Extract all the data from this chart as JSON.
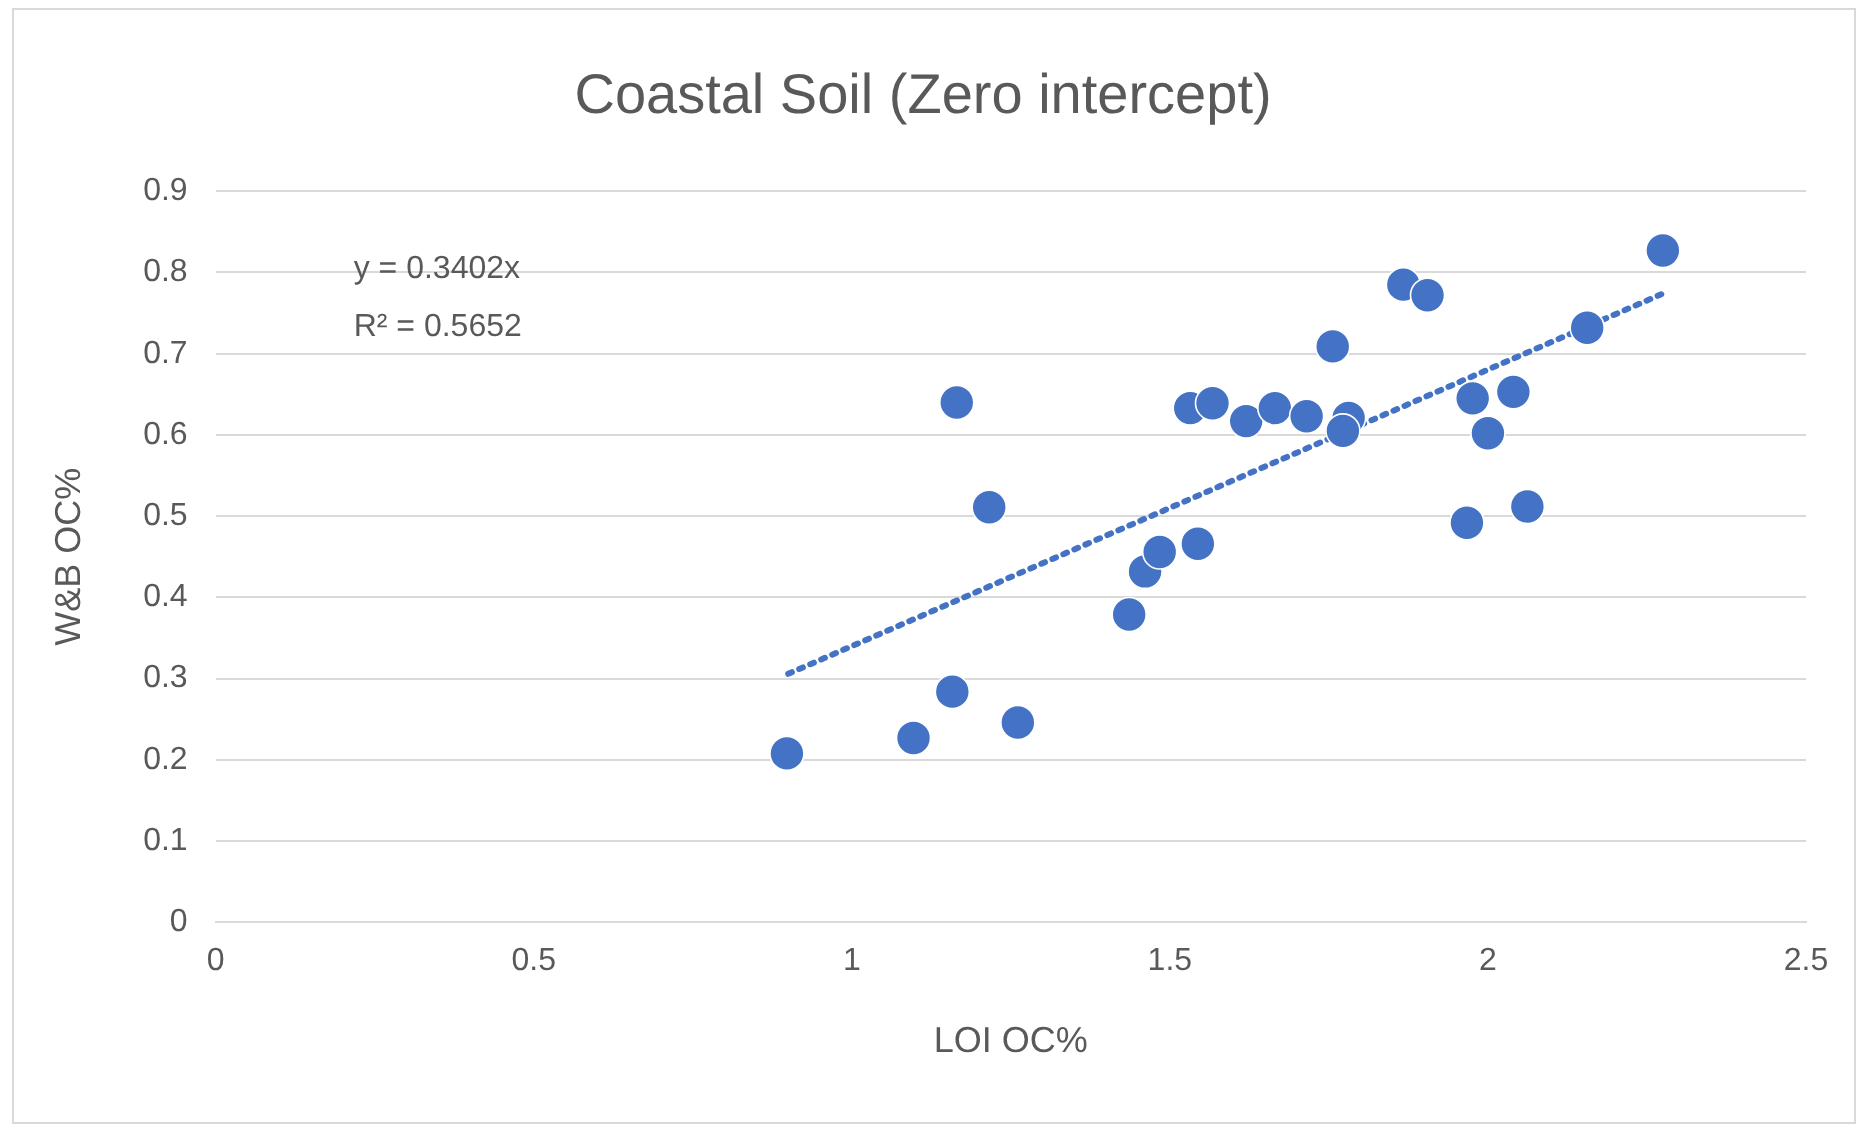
{
  "chart_data": {
    "type": "scatter",
    "title": "Coastal Soil (Zero intercept)",
    "xlabel": "LOI OC%",
    "ylabel": "W&B OC%",
    "xlim": [
      0,
      2.5
    ],
    "xticks": [
      0,
      0.5,
      1,
      1.5,
      2,
      2.5
    ],
    "ylim": [
      0,
      0.9
    ],
    "yticks": [
      0,
      0.1,
      0.2,
      0.3,
      0.4,
      0.5,
      0.6,
      0.7,
      0.8,
      0.9
    ],
    "grid": "y",
    "legend": false,
    "marker": "circle",
    "annotations": [
      "y = 0.3402x",
      "R² = 0.5652"
    ],
    "series": [
      {
        "color": "#4472c4",
        "x": [
          0.898,
          1.097,
          1.158,
          1.165,
          1.216,
          1.261,
          1.436,
          1.461,
          1.484,
          1.544,
          1.532,
          1.567,
          1.62,
          1.665,
          1.715,
          1.756,
          1.781,
          1.772,
          1.867,
          1.905,
          1.976,
          2.04,
          2.0,
          1.967,
          2.062,
          2.156,
          2.275
        ],
        "values": [
          0.208,
          0.227,
          0.284,
          0.64,
          0.511,
          0.246,
          0.379,
          0.432,
          0.456,
          0.466,
          0.633,
          0.639,
          0.617,
          0.633,
          0.623,
          0.709,
          0.621,
          0.605,
          0.785,
          0.772,
          0.645,
          0.653,
          0.602,
          0.492,
          0.512,
          0.732,
          0.827
        ]
      },
      {
        "type": "line",
        "color": "#4472c4",
        "line_style": "dotted",
        "marker": "none",
        "x": [
          0.9,
          2.275
        ],
        "values": [
          0.306,
          0.774
        ]
      }
    ]
  }
}
